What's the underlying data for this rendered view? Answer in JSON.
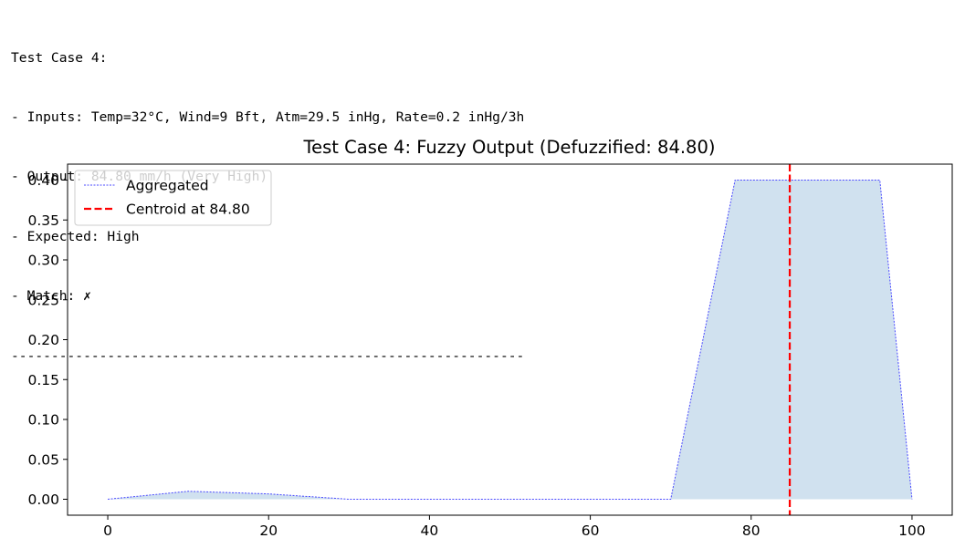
{
  "console": {
    "lines": [
      "Test Case 4:",
      "- Inputs: Temp=32°C, Wind=9 Bft, Atm=29.5 inHg, Rate=0.2 inHg/3h",
      "- Output: 84.80 mm/h (Very High)",
      "- Expected: High",
      "- Match: ✗",
      "----------------------------------------------------------------"
    ]
  },
  "chart_data": {
    "type": "area",
    "title": "Test Case 4: Fuzzy Output (Defuzzified: 84.80)",
    "xlabel": "",
    "ylabel": "",
    "xlim": [
      -5,
      105
    ],
    "ylim": [
      -0.02,
      0.42
    ],
    "x_ticks": [
      0,
      20,
      40,
      60,
      80,
      100
    ],
    "y_ticks": [
      0.0,
      0.05,
      0.1,
      0.15,
      0.2,
      0.25,
      0.3,
      0.35,
      0.4
    ],
    "series": [
      {
        "name": "Aggregated",
        "style": "dotted",
        "color": "#4a4aff",
        "fill_color": "#d0e1ef",
        "x": [
          0,
          10,
          20,
          30,
          70,
          78,
          96,
          100
        ],
        "y": [
          0.0,
          0.01,
          0.0067,
          0.0,
          0.0,
          0.4,
          0.4,
          0.0
        ]
      }
    ],
    "vlines": [
      {
        "name": "Centroid at 84.80",
        "x": 84.8,
        "style": "dashed",
        "color": "#ff0000"
      }
    ],
    "legend_position": "top-left",
    "grid": false
  }
}
